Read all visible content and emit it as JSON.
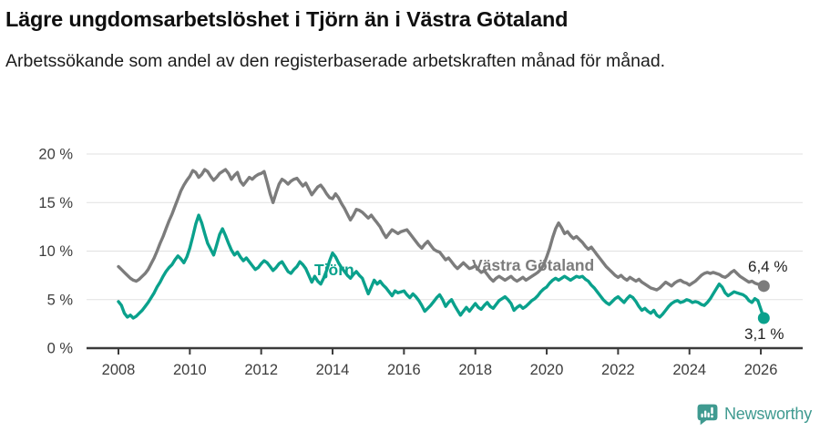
{
  "header": {
    "title": "Lägre ungdomsarbetslöshet i Tjörn än i Västra Götaland",
    "subtitle": "Arbetssökande som andel av den registerbaserade arbetskraften månad för månad."
  },
  "chart_data": {
    "type": "line",
    "title": "Lägre ungdomsarbetslöshet i Tjörn än i Västra Götaland",
    "subtitle": "Arbetssökande som andel av den registerbaserade arbetskraften månad för månad.",
    "x_unit": "month",
    "x_start": "2008-01",
    "x_end": "2026-02",
    "x_ticks": [
      2008,
      2010,
      2012,
      2014,
      2016,
      2018,
      2020,
      2022,
      2024,
      2026
    ],
    "y_tick_values": [
      0,
      5,
      10,
      15,
      20
    ],
    "y_tick_labels": [
      "0 %",
      "5 %",
      "10 %",
      "15 %",
      "20 %"
    ],
    "ylim": [
      0,
      20
    ],
    "grid": "horizontal",
    "legend_position": "inline-labels",
    "colors": {
      "tjorn": "#0aa18c",
      "vastra_gotaland": "#7c7c7c",
      "grid": "#e1e1e1",
      "axis": "#3b3b3b",
      "tick_text": "#3d3d3d",
      "end_label_text": "#222222"
    },
    "series": [
      {
        "name": "Västra Götaland",
        "color": "#7c7c7c",
        "end_label": "6,4 %",
        "end_value": 6.4,
        "values": [
          8.4,
          8.1,
          7.8,
          7.5,
          7.2,
          7.0,
          6.9,
          7.1,
          7.4,
          7.7,
          8.1,
          8.7,
          9.3,
          10.0,
          10.8,
          11.5,
          12.3,
          13.1,
          13.8,
          14.6,
          15.4,
          16.2,
          16.8,
          17.3,
          17.7,
          18.3,
          18.1,
          17.6,
          17.9,
          18.4,
          18.2,
          17.7,
          17.3,
          17.6,
          18.0,
          18.2,
          18.4,
          18.0,
          17.4,
          17.8,
          18.1,
          17.2,
          16.8,
          17.2,
          17.6,
          17.4,
          17.7,
          17.9,
          18.0,
          18.2,
          17.1,
          15.9,
          15.0,
          16.0,
          16.9,
          17.4,
          17.2,
          16.9,
          17.2,
          17.4,
          17.5,
          17.1,
          16.7,
          17.0,
          16.4,
          15.8,
          16.2,
          16.6,
          16.8,
          16.4,
          15.9,
          15.5,
          15.4,
          15.9,
          15.5,
          14.9,
          14.4,
          13.8,
          13.2,
          13.7,
          14.3,
          14.2,
          14.0,
          13.7,
          13.4,
          13.7,
          13.3,
          12.9,
          12.5,
          11.9,
          11.4,
          11.8,
          12.2,
          12.0,
          11.8,
          12.0,
          12.1,
          12.2,
          11.8,
          11.4,
          11.0,
          10.6,
          10.3,
          10.7,
          11.0,
          10.6,
          10.2,
          10.0,
          9.9,
          9.5,
          9.1,
          9.3,
          8.9,
          8.5,
          8.2,
          8.5,
          8.8,
          8.5,
          8.2,
          8.3,
          8.5,
          8.1,
          7.8,
          8.0,
          7.6,
          7.2,
          6.9,
          7.2,
          7.4,
          7.2,
          7.0,
          7.2,
          7.4,
          7.1,
          6.9,
          7.1,
          7.3,
          7.0,
          7.2,
          7.4,
          7.6,
          7.8,
          8.1,
          8.6,
          9.4,
          10.3,
          11.4,
          12.3,
          12.9,
          12.4,
          11.8,
          12.0,
          11.6,
          11.3,
          11.5,
          11.2,
          10.9,
          10.5,
          10.2,
          10.4,
          10.0,
          9.6,
          9.2,
          8.8,
          8.4,
          8.1,
          7.8,
          7.5,
          7.3,
          7.5,
          7.2,
          7.0,
          7.3,
          7.1,
          6.9,
          7.1,
          6.8,
          6.6,
          6.4,
          6.2,
          6.1,
          6.0,
          6.2,
          6.5,
          6.8,
          6.6,
          6.4,
          6.7,
          6.9,
          7.0,
          6.8,
          6.7,
          6.5,
          6.7,
          6.9,
          7.2,
          7.5,
          7.7,
          7.8,
          7.7,
          7.8,
          7.7,
          7.6,
          7.4,
          7.3,
          7.5,
          7.8,
          8.0,
          7.7,
          7.4,
          7.2,
          7.0,
          6.8,
          6.9,
          6.7,
          6.6,
          6.5,
          6.4
        ]
      },
      {
        "name": "Tjörn",
        "color": "#0aa18c",
        "end_label": "3,1 %",
        "end_value": 3.1,
        "values": [
          4.8,
          4.4,
          3.6,
          3.2,
          3.4,
          3.1,
          3.3,
          3.6,
          3.9,
          4.3,
          4.7,
          5.2,
          5.7,
          6.3,
          6.8,
          7.4,
          7.9,
          8.3,
          8.6,
          9.1,
          9.5,
          9.2,
          8.8,
          9.4,
          10.3,
          11.5,
          12.8,
          13.7,
          12.9,
          11.8,
          10.8,
          10.2,
          9.6,
          10.6,
          11.7,
          12.3,
          11.6,
          10.8,
          10.1,
          9.6,
          9.9,
          9.4,
          9.0,
          9.3,
          8.9,
          8.5,
          8.1,
          8.3,
          8.7,
          9.0,
          8.8,
          8.4,
          8.0,
          8.3,
          8.7,
          8.9,
          8.4,
          7.9,
          7.7,
          8.1,
          8.4,
          8.9,
          8.6,
          8.2,
          7.5,
          6.8,
          7.4,
          6.9,
          6.6,
          7.2,
          8.0,
          9.0,
          9.8,
          9.4,
          8.8,
          8.3,
          7.9,
          7.5,
          7.2,
          7.6,
          7.9,
          7.5,
          7.2,
          6.4,
          5.6,
          6.3,
          7.0,
          6.6,
          6.9,
          6.5,
          6.2,
          5.8,
          5.4,
          5.9,
          5.7,
          5.8,
          5.9,
          5.5,
          5.2,
          5.6,
          5.3,
          4.9,
          4.4,
          3.8,
          4.1,
          4.4,
          4.8,
          5.2,
          5.5,
          5.0,
          4.3,
          4.7,
          5.0,
          4.4,
          3.9,
          3.4,
          3.8,
          4.2,
          3.8,
          4.2,
          4.6,
          4.2,
          4.0,
          4.4,
          4.7,
          4.3,
          4.1,
          4.5,
          4.9,
          5.1,
          5.3,
          5.0,
          4.6,
          3.9,
          4.2,
          4.4,
          4.1,
          4.3,
          4.6,
          4.9,
          5.1,
          5.4,
          5.8,
          6.1,
          6.3,
          6.7,
          7.0,
          7.2,
          7.0,
          7.2,
          7.4,
          7.2,
          7.0,
          7.2,
          7.4,
          7.3,
          7.4,
          7.1,
          6.9,
          6.5,
          6.2,
          5.8,
          5.4,
          5.0,
          4.7,
          4.5,
          4.8,
          5.1,
          5.3,
          5.0,
          4.7,
          5.1,
          5.4,
          5.2,
          4.8,
          4.3,
          3.9,
          4.1,
          3.8,
          3.6,
          3.9,
          3.4,
          3.2,
          3.5,
          3.9,
          4.3,
          4.6,
          4.8,
          4.9,
          4.7,
          4.8,
          5.0,
          4.9,
          4.7,
          4.8,
          4.7,
          4.5,
          4.4,
          4.7,
          5.1,
          5.6,
          6.1,
          6.6,
          6.3,
          5.7,
          5.4,
          5.6,
          5.8,
          5.7,
          5.6,
          5.5,
          5.3,
          4.9,
          4.7,
          5.1,
          4.9,
          4.0,
          3.1
        ]
      }
    ]
  },
  "footer": {
    "brand": "Newsworthy",
    "brand_color": "#3f9a90"
  }
}
